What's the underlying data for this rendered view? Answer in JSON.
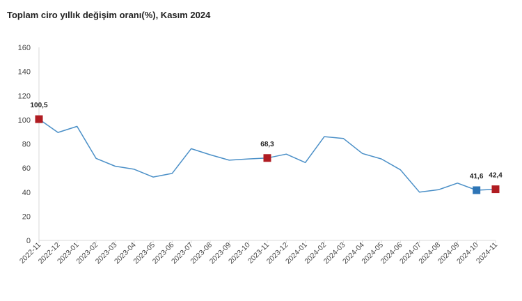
{
  "title": "Toplam ciro yıllık değişim oranı(%), Kasım 2024",
  "colors": {
    "line": "#4a8fc7",
    "highlight_red": "#b01c22",
    "highlight_blue": "#2e75b6",
    "axis": "#d9d9d9"
  },
  "chart_data": {
    "type": "line",
    "title": "Toplam ciro yıllık değişim oranı(%), Kasım 2024",
    "xlabel": "",
    "ylabel": "",
    "ylim": [
      0,
      160
    ],
    "yticks": [
      "0",
      "20",
      "40",
      "60",
      "80",
      "100",
      "120",
      "140",
      "160"
    ],
    "grid": false,
    "legend": "none",
    "categories": [
      "2022-11",
      "2022-12",
      "2023-01",
      "2023-02",
      "2023-03",
      "2023-04",
      "2023-05",
      "2023-06",
      "2023-07",
      "2023-08",
      "2023-09",
      "2023-10",
      "2023-11",
      "2023-12",
      "2024-01",
      "2024-02",
      "2024-03",
      "2024-04",
      "2024-05",
      "2024-06",
      "2024-07",
      "2024-08",
      "2024-09",
      "2024-10",
      "2024-11"
    ],
    "series": [
      {
        "values": [
          100.5,
          89.5,
          94.5,
          68,
          61.5,
          59,
          52.5,
          55.5,
          76,
          71,
          66.5,
          67.5,
          68.3,
          71.5,
          64.5,
          86,
          84.5,
          72,
          67.5,
          58.5,
          40,
          42,
          47.5,
          41.6,
          42.4
        ]
      }
    ],
    "annotations": [
      {
        "index": 0,
        "label": "100,5",
        "marker": "red"
      },
      {
        "index": 12,
        "label": "68,3",
        "marker": "red"
      },
      {
        "index": 23,
        "label": "41,6",
        "marker": "blue"
      },
      {
        "index": 24,
        "label": "42,4",
        "marker": "red"
      }
    ]
  }
}
